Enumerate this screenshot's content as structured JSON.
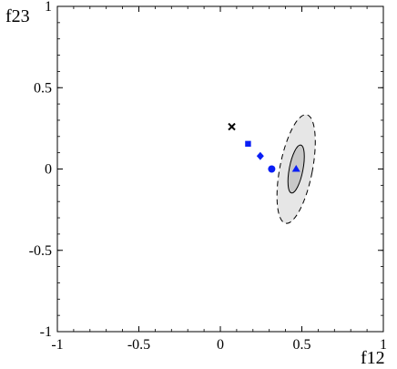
{
  "chart_data": {
    "type": "scatter",
    "xlabel": "f12",
    "ylabel": "f23",
    "xlim": [
      -1,
      1
    ],
    "ylim": [
      -1,
      1
    ],
    "x_ticks": [
      -1,
      -0.5,
      0,
      0.5,
      1
    ],
    "x_tick_labels": [
      "-1",
      "-0.5",
      "0",
      "0.5",
      "1"
    ],
    "y_ticks": [
      -1,
      -0.5,
      0,
      0.5,
      1
    ],
    "y_tick_labels": [
      "-1",
      "-0.5",
      "0",
      "0.5",
      "1"
    ],
    "grid": false,
    "colors": {
      "points": "#0a1ef5",
      "cross": "#000000",
      "outer_region": "#e6e6e6",
      "inner_region": "#c8c8c8"
    },
    "regions": [
      {
        "style": "dashed",
        "center": [
          0.465,
          0.0
        ],
        "semi_axes": [
          0.1,
          0.34
        ],
        "rotation_deg": -11
      },
      {
        "style": "solid",
        "center": [
          0.465,
          0.0
        ],
        "semi_axes": [
          0.042,
          0.15
        ],
        "rotation_deg": -11
      }
    ],
    "points": [
      {
        "marker": "cross",
        "x": 0.07,
        "y": 0.26
      },
      {
        "marker": "square",
        "x": 0.17,
        "y": 0.155
      },
      {
        "marker": "diamond",
        "x": 0.245,
        "y": 0.08
      },
      {
        "marker": "circle",
        "x": 0.315,
        "y": 0.0
      },
      {
        "marker": "triangle",
        "x": 0.465,
        "y": 0.0
      }
    ]
  }
}
